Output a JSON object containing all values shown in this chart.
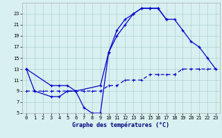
{
  "xlabel": "Graphe des températures (°C)",
  "background_color": "#d8f0f0",
  "grid_color": "#b0d0d0",
  "line_color": "#0000cc",
  "curve1_x": [
    0,
    1,
    3,
    4,
    5,
    6,
    7,
    8,
    9,
    10,
    11,
    12,
    13,
    14,
    15,
    16,
    17
  ],
  "curve1_y": [
    13,
    9,
    8,
    8,
    9,
    9,
    6,
    5,
    5,
    16,
    19,
    21,
    23,
    24,
    24,
    24,
    22
  ],
  "curve2_x": [
    0,
    3,
    4,
    5,
    6,
    9,
    10,
    11,
    12,
    13,
    14,
    15,
    16,
    17,
    18,
    19,
    20,
    21,
    22,
    23
  ],
  "curve2_y": [
    13,
    10,
    10,
    10,
    9,
    10,
    16,
    20,
    22,
    23,
    24,
    24,
    24,
    22,
    22,
    20,
    18,
    17,
    15,
    13
  ],
  "curve3_x": [
    0,
    1,
    2,
    3,
    4,
    5,
    6,
    7,
    8,
    9,
    10,
    11,
    12,
    13,
    14,
    15,
    16,
    17,
    18,
    19,
    20,
    21,
    22,
    23
  ],
  "curve3_y": [
    9,
    9,
    9,
    9,
    9,
    9,
    9,
    9,
    9,
    9,
    10,
    10,
    11,
    11,
    11,
    12,
    12,
    12,
    12,
    13,
    13,
    13,
    13,
    13
  ],
  "ylim": [
    5,
    25
  ],
  "yticks": [
    5,
    7,
    9,
    11,
    13,
    15,
    17,
    19,
    21,
    23
  ],
  "xlim": [
    -0.5,
    23.5
  ],
  "xticks": [
    0,
    1,
    2,
    3,
    4,
    5,
    6,
    7,
    8,
    9,
    10,
    11,
    12,
    13,
    14,
    15,
    16,
    17,
    18,
    19,
    20,
    21,
    22,
    23
  ]
}
